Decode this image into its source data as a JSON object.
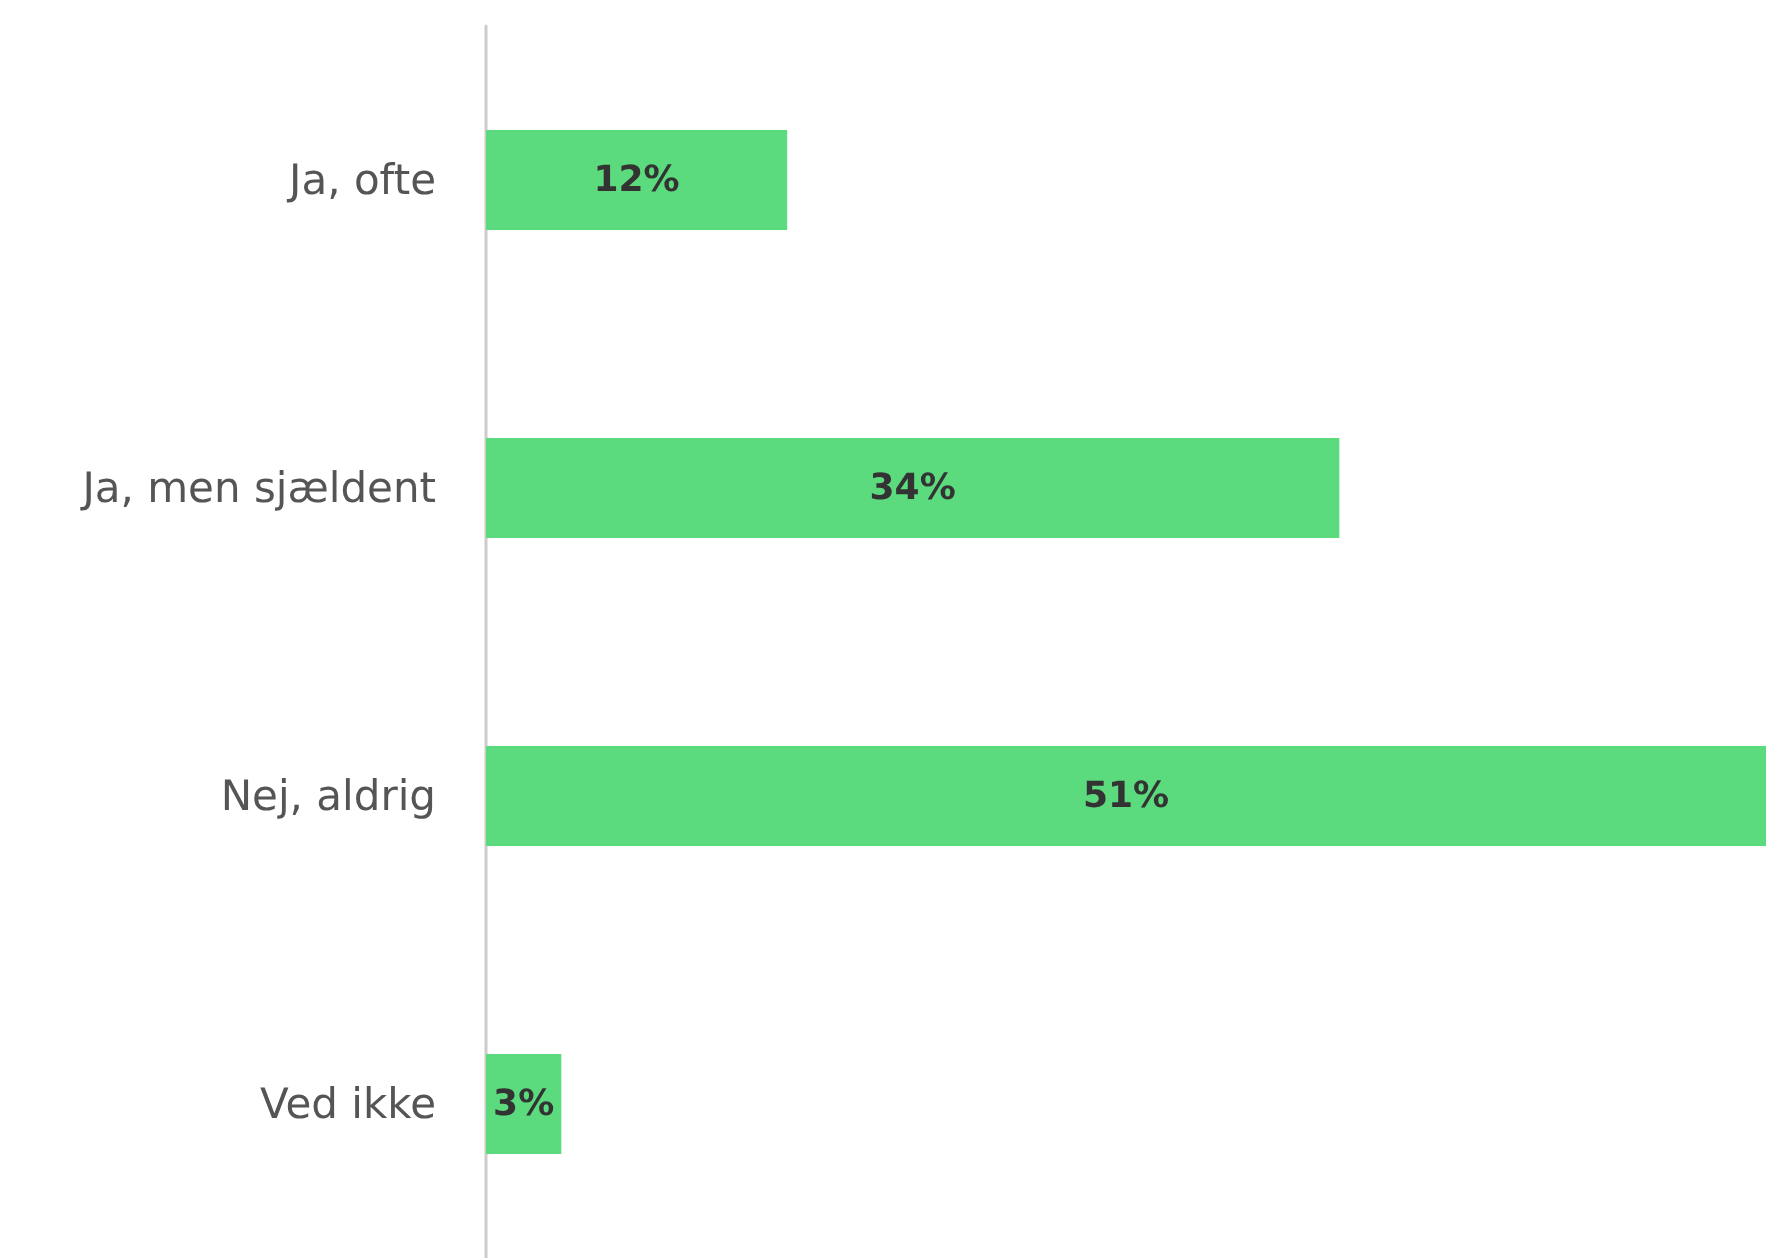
{
  "chart_data": {
    "type": "bar",
    "orientation": "horizontal",
    "categories": [
      "Ja, ofte",
      "Ja, men sjældent",
      "Nej, aldrig",
      "Ved ikke"
    ],
    "values": [
      12,
      34,
      51,
      3
    ],
    "value_labels": [
      "12%",
      "34%",
      "51%",
      "3%"
    ],
    "color": "#5bdb7d"
  }
}
